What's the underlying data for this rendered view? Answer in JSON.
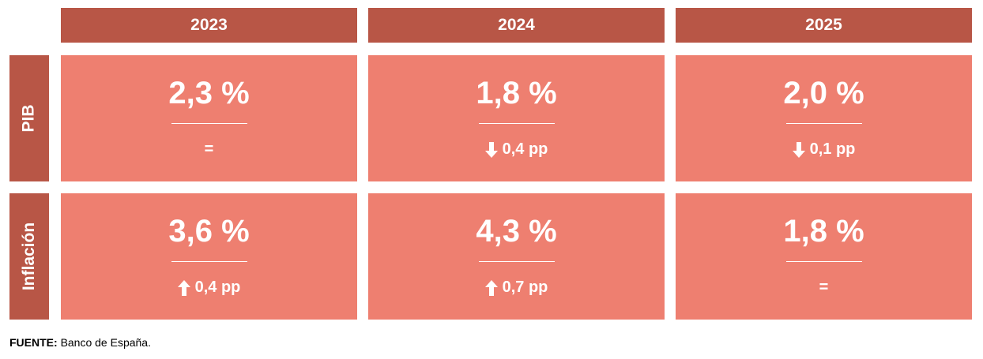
{
  "header": {
    "columns": [
      "2023",
      "2024",
      "2025"
    ]
  },
  "rows": [
    {
      "label": "PIB",
      "cells": [
        {
          "value": "2,3 %",
          "change": "="
        },
        {
          "value": "1,8 %",
          "change": "0,4 pp",
          "direction": "down"
        },
        {
          "value": "2,0 %",
          "change": "0,1 pp",
          "direction": "down"
        }
      ]
    },
    {
      "label": "Inflación",
      "cells": [
        {
          "value": "3,6 %",
          "change": "0,4 pp",
          "direction": "up"
        },
        {
          "value": "4,3 %",
          "change": "0,7 pp",
          "direction": "up"
        },
        {
          "value": "1,8 %",
          "change": "="
        }
      ]
    }
  ],
  "footer": {
    "source_label": "FUENTE:",
    "source": "Banco de España."
  }
}
